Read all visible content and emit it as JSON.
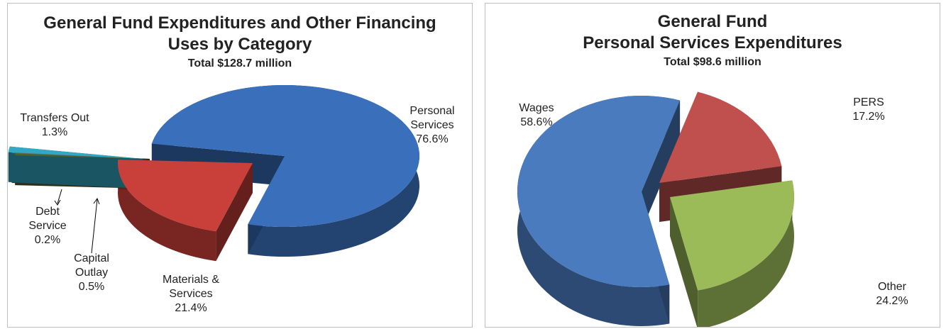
{
  "chart_data": [
    {
      "type": "pie",
      "title": [
        "General Fund Expenditures and Other Financing",
        "Uses by Category"
      ],
      "subtitle": "Total $128.7 million",
      "categories": [
        "Personal Services",
        "Materials & Services",
        "Capital Outlay",
        "Debt Service",
        "Transfers Out"
      ],
      "values": [
        76.6,
        21.4,
        0.5,
        0.2,
        1.3
      ],
      "value_labels": [
        "76.6%",
        "21.4%",
        "0.5%",
        "0.2%",
        "1.3%"
      ],
      "colors": [
        "#3a70bb",
        "#c9403b",
        "#4f6228",
        "#6b6b6b",
        "#31a9c4"
      ]
    },
    {
      "type": "pie",
      "title": [
        "General Fund",
        "Personal Services Expenditures"
      ],
      "subtitle": "Total $98.6 million",
      "categories": [
        "PERS",
        "Other",
        "Wages"
      ],
      "values": [
        17.2,
        24.2,
        58.6
      ],
      "value_labels": [
        "17.2%",
        "24.2%",
        "58.6%"
      ],
      "colors": [
        "#c0504d",
        "#9bbb59",
        "#4a7bbf"
      ]
    }
  ]
}
